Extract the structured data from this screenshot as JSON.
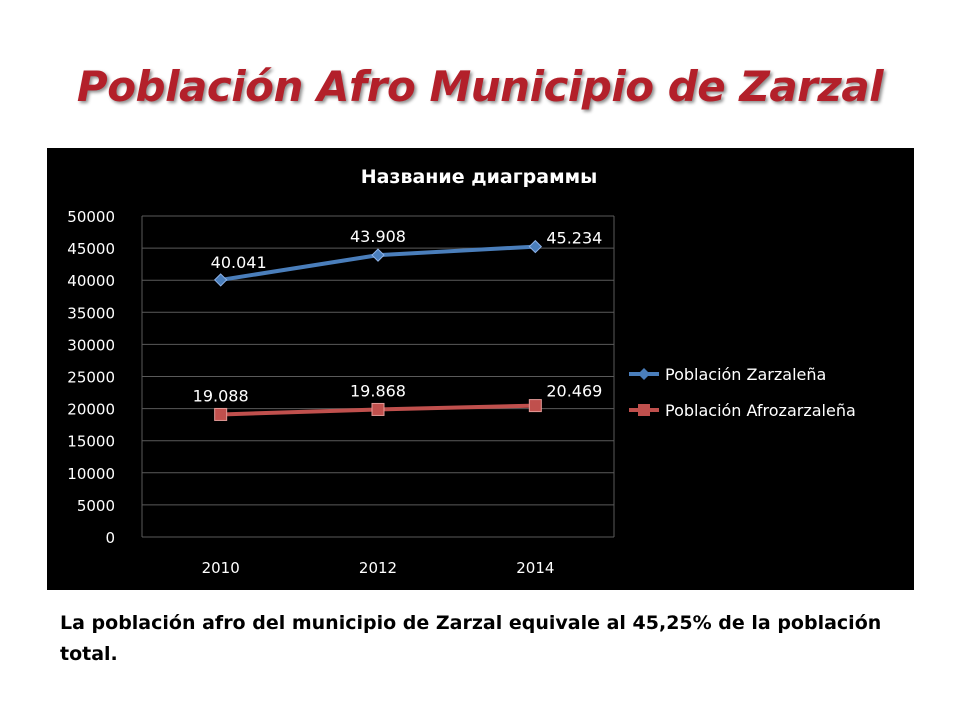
{
  "slide": {
    "title": "Población Afro Municipio de Zarzal",
    "caption": "La población afro del municipio de Zarzal equivale al 45,25% de la población total."
  },
  "chart_data": {
    "type": "line",
    "title": "Название диаграммы",
    "xlabel": "",
    "ylabel": "",
    "categories": [
      "2010",
      "2012",
      "2014"
    ],
    "ylim": [
      0,
      50000
    ],
    "yticks": [
      0,
      5000,
      10000,
      15000,
      20000,
      25000,
      30000,
      35000,
      40000,
      45000,
      50000
    ],
    "grid": true,
    "legend_position": "right",
    "series": [
      {
        "name": "Población Zarzaleña",
        "values": [
          40041,
          43908,
          45234
        ],
        "labels": [
          "40.041",
          "43.908",
          "45.234"
        ],
        "color": "#4a7ebb",
        "marker": "diamond"
      },
      {
        "name": "Población Afrozarzaleña",
        "values": [
          19088,
          19868,
          20469
        ],
        "labels": [
          "19.088",
          "19.868",
          "20.469"
        ],
        "color": "#c0504d",
        "marker": "square"
      }
    ],
    "background": "#000000",
    "text_color": "#ffffff",
    "grid_color": "#5a5a5a"
  }
}
